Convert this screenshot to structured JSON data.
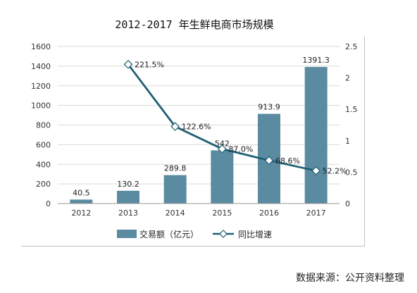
{
  "chart_data": {
    "type": "bar",
    "title": "2012-2017 年生鲜电商市场规模",
    "categories": [
      "2012",
      "2013",
      "2014",
      "2015",
      "2016",
      "2017"
    ],
    "series": [
      {
        "name": "交易额（亿元）",
        "type": "bar",
        "axis": "left",
        "values": [
          40.5,
          130.2,
          289.8,
          542,
          913.9,
          1391.3
        ],
        "labels": [
          "40.5",
          "130.2",
          "289.8",
          "542",
          "913.9",
          "1391.3"
        ],
        "color": "#5b8ba1"
      },
      {
        "name": "同比增速",
        "type": "line",
        "axis": "right",
        "values": [
          null,
          2.215,
          1.226,
          0.87,
          0.686,
          0.522
        ],
        "labels": [
          "",
          "221.5%",
          "122.6%",
          "87.0%",
          "68.6%",
          "52.2%"
        ],
        "color": "#1f5f73"
      }
    ],
    "y_left": {
      "min": 0,
      "max": 1600,
      "ticks": [
        "0",
        "200",
        "400",
        "600",
        "800",
        "1000",
        "1200",
        "1400",
        "1600"
      ]
    },
    "y_right": {
      "min": 0,
      "max": 2.5,
      "ticks": [
        "0",
        "0.5",
        "1",
        "1.5",
        "2",
        "2.5"
      ]
    },
    "grid": true,
    "legend": "bottom"
  },
  "source": "数据来源：公开资料整理"
}
